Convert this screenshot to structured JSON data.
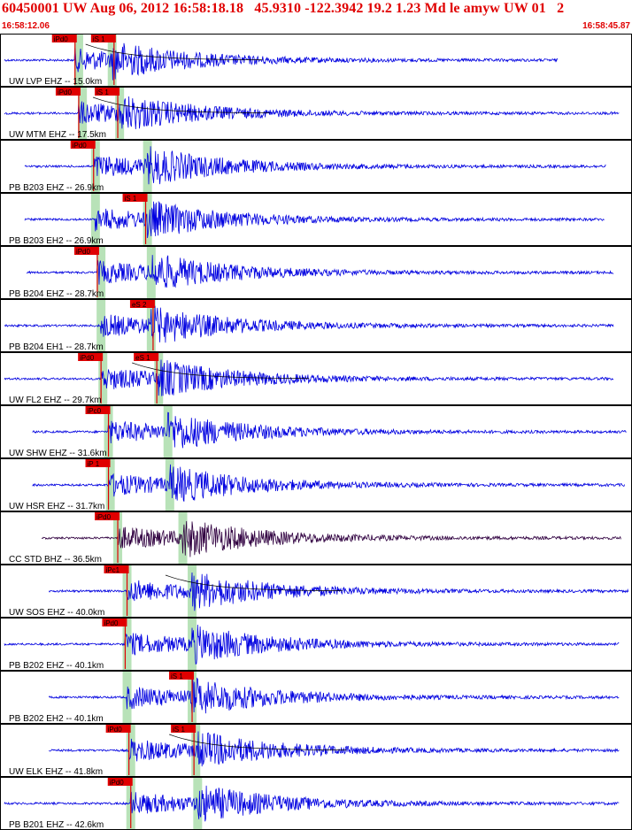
{
  "header": {
    "title": "60450001 UW Aug 06, 2012 16:58:18.18   45.9310 -122.3942 19.2 1.23 Md le amyw UW 01   2",
    "start_time": "16:58:12.06",
    "end_time": "16:58:45.87"
  },
  "colors": {
    "title": "#e00000",
    "trace": "#0000e0",
    "trace_alt": "#300040",
    "pick_fill": "#e00000",
    "pick_text": "#000000",
    "predicted_window": "#b8e2b8",
    "coda_fit": "#000000",
    "frame": "#000000"
  },
  "chart_data": {
    "type": "line",
    "title": "60450001 UW Aug 06, 2012 16:58:18.18   45.9310 -122.3942 19.2 1.23 Md le amyw UW 01   2",
    "x_range": [
      "16:58:12.06",
      "16:58:45.87"
    ],
    "series": [
      {
        "name": "UW LVP EHZ -- 15.0km",
        "picks": [
          {
            "label": "iPd0",
            "time": "16:58:16.0"
          },
          {
            "label": "iS 1",
            "time": "16:58:18.1"
          }
        ],
        "predicted": [
          "16:58:16.2",
          "16:58:18.0"
        ],
        "signal_start": "16:58:12.2",
        "signal_end": "16:58:42.0",
        "color": "#0000e0",
        "coda": true
      },
      {
        "name": "UW MTM EHZ -- 17.5km",
        "picks": [
          {
            "label": "iPd0",
            "time": "16:58:16.2"
          },
          {
            "label": "iS 1",
            "time": "16:58:18.3"
          }
        ],
        "predicted": [
          "16:58:16.4",
          "16:58:18.4"
        ],
        "signal_start": "16:58:12.2",
        "signal_end": "16:58:45.3",
        "color": "#0000e0",
        "coda": true
      },
      {
        "name": "PB B203 EHZ -- 26.9km",
        "picks": [
          {
            "label": "iPd0",
            "time": "16:58:17.0"
          }
        ],
        "predicted": [
          "16:58:17.1",
          "16:58:19.9"
        ],
        "signal_start": "16:58:13.3",
        "signal_end": "16:58:44.6",
        "color": "#0000e0",
        "coda": false
      },
      {
        "name": "PB B203 EH2 -- 26.9km",
        "picks": [
          {
            "label": "iS 1",
            "time": "16:58:19.8"
          }
        ],
        "predicted": [
          "16:58:17.1",
          "16:58:19.9"
        ],
        "signal_start": "16:58:13.3",
        "signal_end": "16:58:44.5",
        "color": "#0000e0",
        "coda": false
      },
      {
        "name": "PB B204 EHZ -- 28.7km",
        "picks": [
          {
            "label": "iPd0",
            "time": "16:58:17.2"
          }
        ],
        "predicted": [
          "16:58:17.4",
          "16:58:20.1"
        ],
        "signal_start": "16:58:13.4",
        "signal_end": "16:58:45.0",
        "color": "#0000e0",
        "coda": false
      },
      {
        "name": "PB B204 EH1 -- 28.7km",
        "picks": [
          {
            "label": "eS 2",
            "time": "16:58:20.2"
          }
        ],
        "predicted": [
          "16:58:17.4",
          "16:58:20.1"
        ],
        "signal_start": "16:58:12.2",
        "signal_end": "16:58:45.0",
        "color": "#0000e0",
        "coda": false
      },
      {
        "name": "UW FL2 EHZ -- 29.7km",
        "picks": [
          {
            "label": "iPd0",
            "time": "16:58:17.4"
          },
          {
            "label": "eS 1",
            "time": "16:58:20.4"
          }
        ],
        "predicted": [
          "16:58:17.5",
          "16:58:20.5"
        ],
        "signal_start": "16:58:12.2",
        "signal_end": "16:58:45.0",
        "color": "#0000e0",
        "coda": true
      },
      {
        "name": "UW SHW EHZ -- 31.6km",
        "picks": [
          {
            "label": "iPc0",
            "time": "16:58:17.8"
          }
        ],
        "predicted": [
          "16:58:17.8",
          "16:58:21.0"
        ],
        "signal_start": "16:58:13.7",
        "signal_end": "16:58:45.7",
        "color": "#0000e0",
        "coda": false
      },
      {
        "name": "UW HSR EHZ -- 31.7km",
        "picks": [
          {
            "label": "iP 1",
            "time": "16:58:17.8"
          }
        ],
        "predicted": [
          "16:58:17.9",
          "16:58:21.1"
        ],
        "signal_start": "16:58:13.7",
        "signal_end": "16:58:45.6",
        "color": "#0000e0",
        "coda": false
      },
      {
        "name": "CC STD BHZ -- 36.5km",
        "picks": [
          {
            "label": "iPd0",
            "time": "16:58:18.3"
          }
        ],
        "predicted": [
          "16:58:18.3",
          "16:58:21.8"
        ],
        "signal_start": "16:58:14.2",
        "signal_end": "16:58:45.4",
        "color": "#300040",
        "coda": false
      },
      {
        "name": "UW SOS EHZ -- 40.0km",
        "picks": [
          {
            "label": "iPc1",
            "time": "16:58:18.8"
          }
        ],
        "predicted": [
          "16:58:18.8",
          "16:58:22.3"
        ],
        "signal_start": "16:58:14.6",
        "signal_end": "16:58:45.8",
        "color": "#0000e0",
        "coda": true
      },
      {
        "name": "PB B202 EHZ -- 40.1km",
        "picks": [
          {
            "label": "iPd0",
            "time": "16:58:18.7"
          }
        ],
        "predicted": [
          "16:58:18.8",
          "16:58:22.3"
        ],
        "signal_start": "16:58:12.2",
        "signal_end": "16:58:45.3",
        "color": "#0000e0",
        "coda": false
      },
      {
        "name": "PB B202 EH2 -- 40.1km",
        "picks": [
          {
            "label": "iS 1",
            "time": "16:58:22.3"
          }
        ],
        "predicted": [
          "16:58:18.8",
          "16:58:22.3"
        ],
        "signal_start": "16:58:14.6",
        "signal_end": "16:58:45.3",
        "color": "#0000e0",
        "coda": false
      },
      {
        "name": "UW ELK EHZ -- 41.8km",
        "picks": [
          {
            "label": "iPd0",
            "time": "16:58:18.9"
          },
          {
            "label": "iS 1",
            "time": "16:58:22.4"
          }
        ],
        "predicted": [
          "16:58:19.0",
          "16:58:22.5"
        ],
        "signal_start": "16:58:14.6",
        "signal_end": "16:58:45.3",
        "color": "#0000e0",
        "coda": true
      },
      {
        "name": "PB B201 EHZ -- 42.6km",
        "picks": [
          {
            "label": "iPd0",
            "time": "16:58:19.0"
          }
        ],
        "predicted": [
          "16:58:19.0",
          "16:58:22.6"
        ],
        "signal_start": "16:58:12.2",
        "signal_end": "16:58:45.3",
        "color": "#0000e0",
        "coda": false
      }
    ]
  }
}
